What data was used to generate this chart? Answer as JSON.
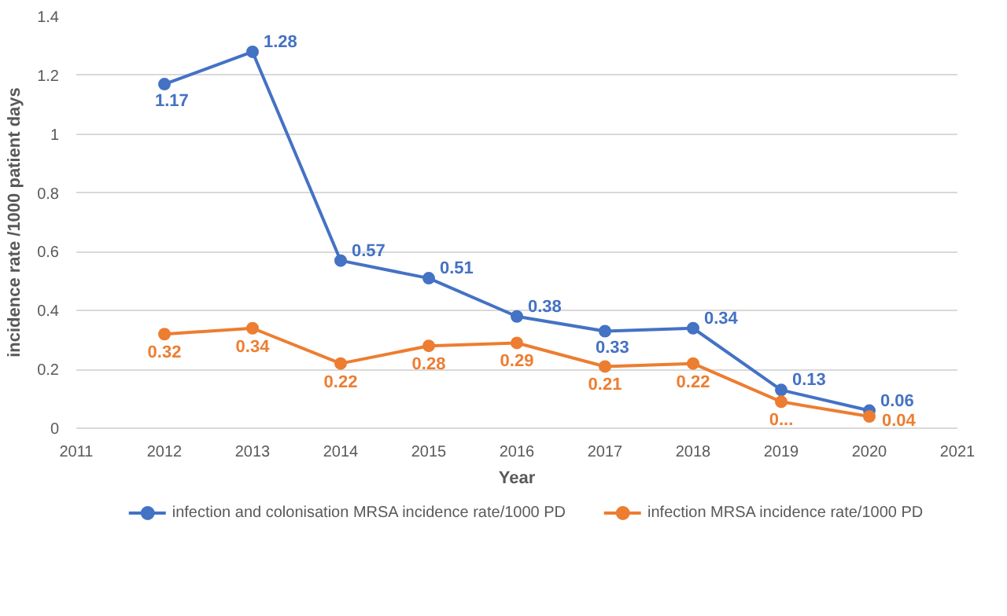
{
  "chart_data": {
    "type": "line",
    "xlabel": "Year",
    "ylabel": "incidence rate /1000 patient days",
    "x": [
      2012,
      2013,
      2014,
      2015,
      2016,
      2017,
      2018,
      2019,
      2020
    ],
    "series": [
      {
        "name": "infection and colonisation MRSA incidence rate/1000 PD",
        "color": "#4472c4",
        "values": [
          1.17,
          1.28,
          0.57,
          0.51,
          0.38,
          0.33,
          0.34,
          0.13,
          0.06
        ],
        "value_labels": [
          "1.17",
          "1.28",
          "0.57",
          "0.51",
          "0.38",
          "0.33",
          "0.34",
          "0.13",
          "0.06"
        ]
      },
      {
        "name": "infection MRSA incidence rate/1000 PD",
        "color": "#ed7d31",
        "values": [
          0.32,
          0.34,
          0.22,
          0.28,
          0.29,
          0.21,
          0.22,
          0.09,
          0.04
        ],
        "value_labels": [
          "0.32",
          "0.34",
          "0.22",
          "0.28",
          "0.29",
          "0.21",
          "0.22",
          "0...",
          "0.04"
        ]
      }
    ],
    "xlim": [
      2011,
      2021
    ],
    "xticks": [
      2011,
      2012,
      2013,
      2014,
      2015,
      2016,
      2017,
      2018,
      2019,
      2020,
      2021
    ],
    "ylim": [
      0,
      1.4
    ],
    "yticks": [
      0,
      0.2,
      0.4,
      0.6,
      0.8,
      1,
      1.2,
      1.4
    ],
    "grid": "y",
    "legend": "bottom",
    "marker": "circle",
    "line_style": "solid"
  }
}
